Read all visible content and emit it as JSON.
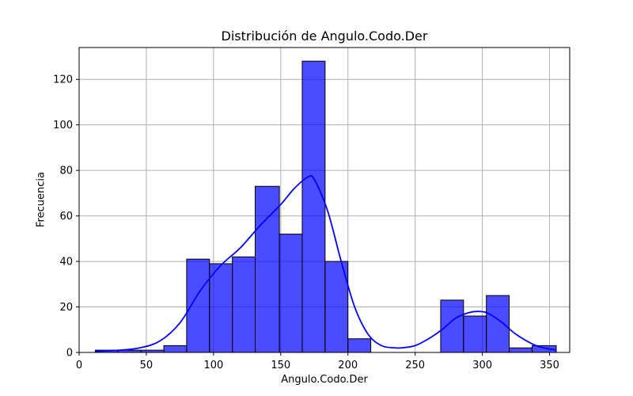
{
  "chart_data": {
    "type": "bar",
    "title": "Distribución de Angulo.Codo.Der",
    "xlabel": "Angulo.Codo.Der",
    "ylabel": "Frecuencia",
    "xlim": [
      0,
      365
    ],
    "ylim": [
      0,
      134
    ],
    "xticks": [
      0,
      50,
      100,
      150,
      200,
      250,
      300,
      350
    ],
    "yticks": [
      0,
      20,
      40,
      60,
      80,
      100,
      120
    ],
    "grid": true,
    "bar_color": "#0000ff",
    "bar_opacity": 0.7,
    "edge_color": "#000000",
    "kde_color": "#0000ff",
    "bins": [
      {
        "x0": 12,
        "x1": 29,
        "value": 1
      },
      {
        "x0": 29,
        "x1": 46,
        "value": 1
      },
      {
        "x0": 46,
        "x1": 63,
        "value": 1
      },
      {
        "x0": 63,
        "x1": 80,
        "value": 3
      },
      {
        "x0": 80,
        "x1": 97,
        "value": 41
      },
      {
        "x0": 97,
        "x1": 114,
        "value": 39
      },
      {
        "x0": 114,
        "x1": 131,
        "value": 42
      },
      {
        "x0": 131,
        "x1": 149,
        "value": 73
      },
      {
        "x0": 149,
        "x1": 166,
        "value": 52
      },
      {
        "x0": 166,
        "x1": 183,
        "value": 128
      },
      {
        "x0": 183,
        "x1": 200,
        "value": 40
      },
      {
        "x0": 200,
        "x1": 217,
        "value": 6
      },
      {
        "x0": 217,
        "x1": 234,
        "value": 0
      },
      {
        "x0": 234,
        "x1": 251,
        "value": 0
      },
      {
        "x0": 251,
        "x1": 269,
        "value": 0
      },
      {
        "x0": 269,
        "x1": 286,
        "value": 23
      },
      {
        "x0": 286,
        "x1": 303,
        "value": 16
      },
      {
        "x0": 303,
        "x1": 320,
        "value": 25
      },
      {
        "x0": 320,
        "x1": 337,
        "value": 2
      },
      {
        "x0": 337,
        "x1": 355,
        "value": 3
      }
    ],
    "kde": {
      "x": [
        12,
        30,
        45,
        60,
        75,
        90,
        105,
        120,
        135,
        150,
        160,
        170,
        175,
        185,
        195,
        205,
        215,
        225,
        235,
        240,
        250,
        260,
        270,
        280,
        290,
        298,
        305,
        315,
        325,
        340,
        355
      ],
      "y": [
        0.5,
        1,
        2,
        5,
        13,
        27,
        38,
        46,
        56,
        65,
        72,
        77,
        76,
        62,
        40,
        20,
        8,
        3,
        2,
        2,
        3,
        6,
        10,
        15,
        17.5,
        18,
        17,
        13,
        8,
        3,
        1
      ]
    }
  }
}
